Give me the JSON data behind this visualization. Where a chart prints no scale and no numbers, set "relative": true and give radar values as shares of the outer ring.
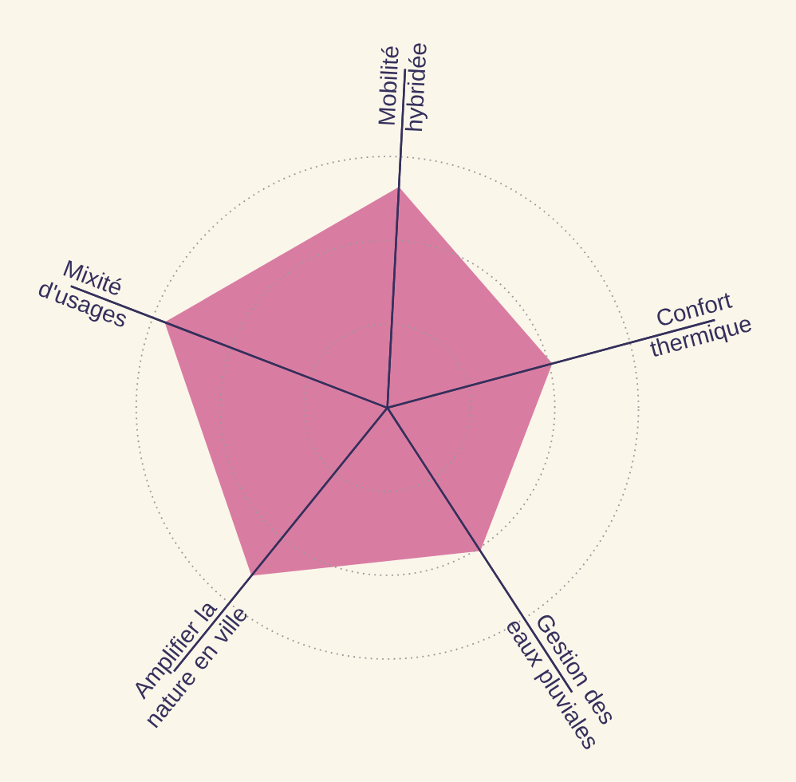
{
  "chart_data": {
    "type": "radar",
    "relative": true,
    "grid": true,
    "categories": [
      "Mobilité hybridée",
      "Confort thermique",
      "Gestion des eaux pluviales",
      "Amplifier la nature en ville",
      "Mixité d'usages"
    ],
    "series": [
      {
        "color": "#d97ca2",
        "values": [
          0.88,
          0.68,
          0.68,
          0.86,
          0.95
        ]
      }
    ]
  }
}
